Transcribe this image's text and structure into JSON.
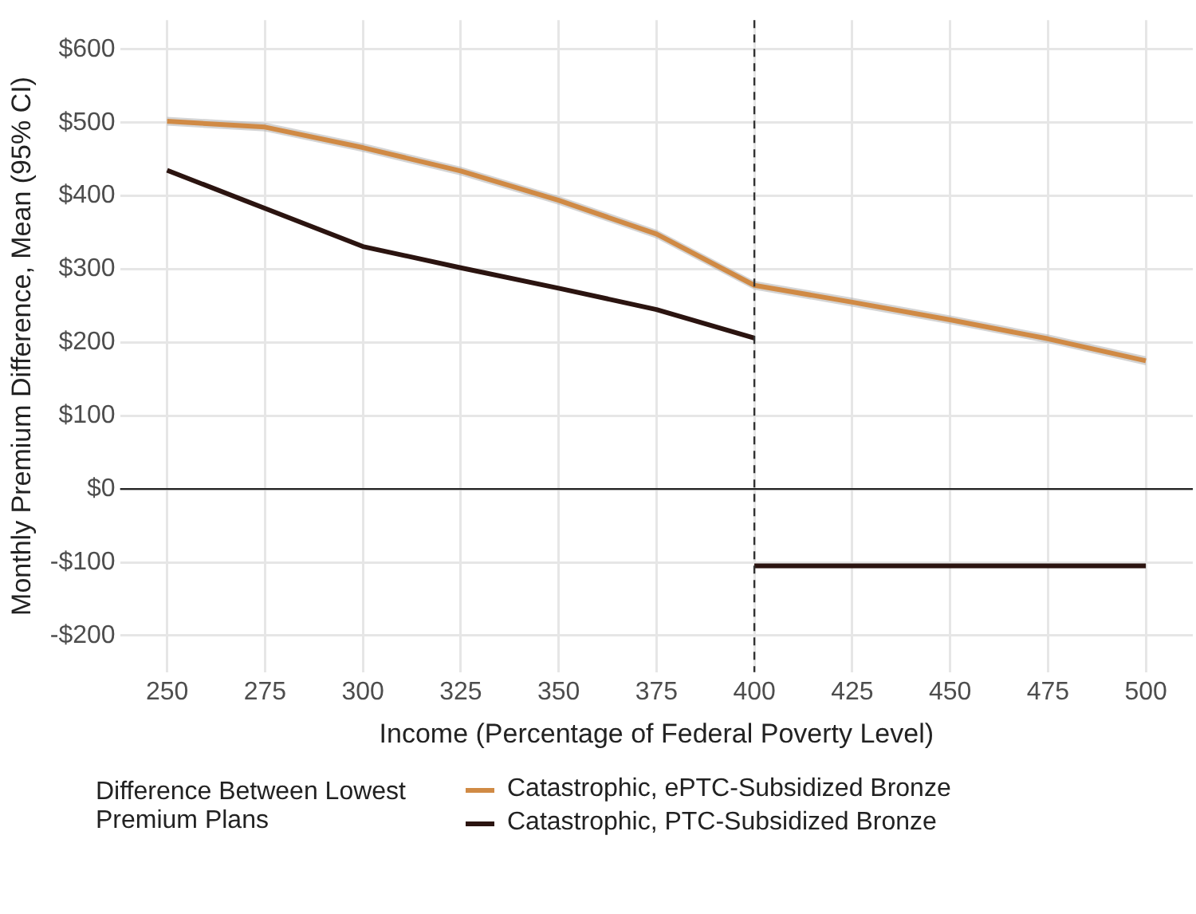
{
  "chart_data": {
    "type": "line",
    "xlabel": "Income (Percentage of Federal Poverty Level)",
    "ylabel": "Monthly Premium Difference, Mean (95% CI)",
    "legend_title": "Difference Between Lowest Premium Plans",
    "legend": "bottom",
    "grid": true,
    "marker": "none",
    "line_style": "solid",
    "xlim": [
      238,
      512
    ],
    "xticks": [
      250,
      275,
      300,
      325,
      350,
      375,
      400,
      425,
      450,
      475,
      500
    ],
    "ylim": [
      -250,
      640
    ],
    "yticks": [
      {
        "value": -200,
        "label": "-$200"
      },
      {
        "value": -100,
        "label": "-$100"
      },
      {
        "value": 0,
        "label": "$0"
      },
      {
        "value": 100,
        "label": "$100"
      },
      {
        "value": 200,
        "label": "$200"
      },
      {
        "value": 300,
        "label": "$300"
      },
      {
        "value": 400,
        "label": "$400"
      },
      {
        "value": 500,
        "label": "$500"
      },
      {
        "value": 600,
        "label": "$600"
      }
    ],
    "ref_lines": [
      {
        "axis": "x",
        "value": 400,
        "line_style": "dashed",
        "color": "#333333"
      },
      {
        "axis": "y",
        "value": 0,
        "line_style": "solid",
        "color": "#222222"
      }
    ],
    "series": [
      {
        "name": "Catastrophic, ePTC-Subsidized Bronze",
        "color": "#d08a45",
        "x": [
          250,
          275,
          300,
          325,
          350,
          375,
          400,
          425,
          450,
          475,
          500
        ],
        "values": [
          502,
          494,
          466,
          434,
          394,
          348,
          278,
          255,
          231,
          205,
          175
        ],
        "lower": [
          496,
          488,
          460,
          428,
          388,
          342,
          272,
          249,
          225,
          199,
          169
        ],
        "upper": [
          508,
          500,
          472,
          440,
          400,
          354,
          284,
          261,
          237,
          211,
          181
        ]
      },
      {
        "name": "Catastrophic, PTC-Subsidized Bronze",
        "color": "#2b1410",
        "x": [
          250,
          275,
          300,
          325,
          350,
          375,
          400
        ],
        "values": [
          435,
          383,
          331,
          302,
          274,
          245,
          206
        ]
      },
      {
        "color": "#2b1410",
        "x": [
          400,
          500
        ],
        "values": [
          -105,
          -105
        ]
      }
    ]
  }
}
